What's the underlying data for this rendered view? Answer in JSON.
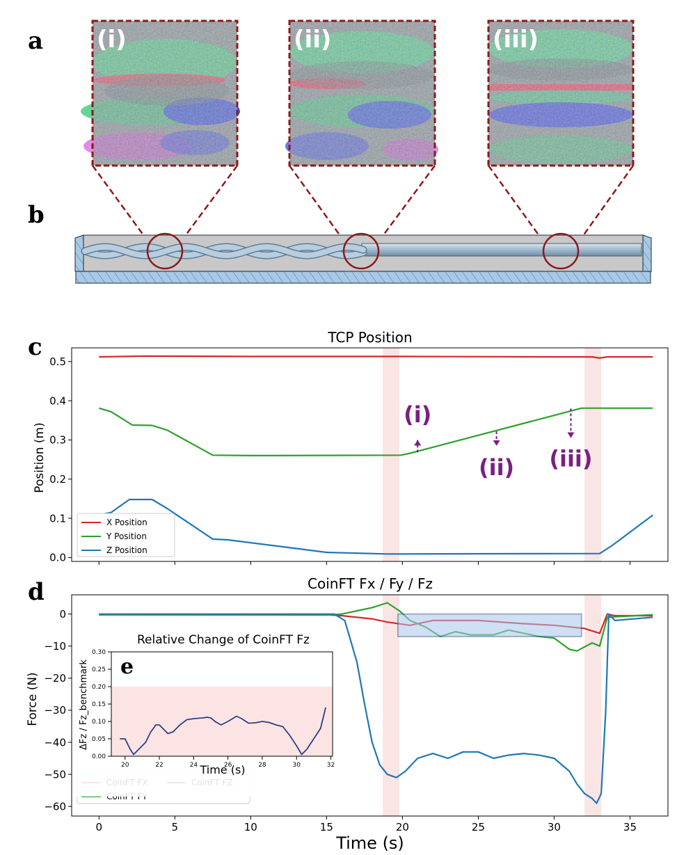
{
  "panel_letters": {
    "a": "a",
    "b": "b",
    "c": "c",
    "d": "d",
    "e": "e"
  },
  "images": {
    "labels": [
      "(i)",
      "(ii)",
      "(iii)"
    ],
    "description_colors": {
      "frame": "#8b1a1a",
      "red": "#ff2040",
      "green": "#2ee07a",
      "blue": "#2233ee",
      "gray": "#808c8c"
    }
  },
  "colors": {
    "x": "#d62728",
    "y": "#2ca02c",
    "z": "#1f77b4",
    "highlight": "#f9dede",
    "purple": "#7a1f82",
    "frame": "#8b1a1a"
  },
  "chart_data": [
    {
      "id": "tcp",
      "type": "line",
      "title": "TCP Position",
      "xlabel": "",
      "ylabel": "Position (m)",
      "xlim": [
        -1.8,
        37.5
      ],
      "ylim": [
        -0.01,
        0.535
      ],
      "xticks": [
        0,
        5,
        10,
        15,
        20,
        25,
        30,
        35
      ],
      "yticks": [
        0.0,
        0.1,
        0.2,
        0.3,
        0.4,
        0.5
      ],
      "ytick_labels": [
        "0.0",
        "0.1",
        "0.2",
        "0.3",
        "0.4",
        "0.5"
      ],
      "shaded_x": [
        [
          18.7,
          19.8
        ],
        [
          32.0,
          33.1
        ]
      ],
      "series": [
        {
          "name": "X Position",
          "color": "x",
          "points": [
            [
              0,
              0.512
            ],
            [
              3,
              0.514
            ],
            [
              10,
              0.513
            ],
            [
              20,
              0.513
            ],
            [
              30,
              0.512
            ],
            [
              32.5,
              0.512
            ],
            [
              33.0,
              0.509
            ],
            [
              33.5,
              0.512
            ],
            [
              36.5,
              0.512
            ]
          ]
        },
        {
          "name": "Y Position",
          "color": "y",
          "points": [
            [
              0,
              0.381
            ],
            [
              0.8,
              0.372
            ],
            [
              2.2,
              0.338
            ],
            [
              3.5,
              0.337
            ],
            [
              4.5,
              0.325
            ],
            [
              7.5,
              0.261
            ],
            [
              10,
              0.26
            ],
            [
              19.9,
              0.261
            ],
            [
              20.5,
              0.266
            ],
            [
              31.8,
              0.381
            ],
            [
              36.5,
              0.381
            ]
          ]
        },
        {
          "name": "Z Position",
          "color": "z",
          "points": [
            [
              0,
              0.109
            ],
            [
              0.8,
              0.115
            ],
            [
              2.0,
              0.148
            ],
            [
              3.5,
              0.148
            ],
            [
              4.5,
              0.125
            ],
            [
              7.5,
              0.047
            ],
            [
              8.5,
              0.045
            ],
            [
              12,
              0.028
            ],
            [
              15,
              0.013
            ],
            [
              19,
              0.009
            ],
            [
              33,
              0.01
            ],
            [
              33.8,
              0.03
            ],
            [
              36.5,
              0.108
            ]
          ]
        }
      ],
      "annotations": [
        {
          "text": "(i)",
          "x": 21.0,
          "y": 0.345,
          "arrow_from": [
            21.0,
            0.268
          ],
          "arrow_to": [
            21.0,
            0.3
          ]
        },
        {
          "text": "(ii)",
          "x": 26.2,
          "y": 0.21,
          "arrow_from": [
            26.2,
            0.322
          ],
          "arrow_to": [
            26.2,
            0.285
          ]
        },
        {
          "text": "(iii)",
          "x": 31.1,
          "y": 0.232,
          "arrow_from": [
            31.1,
            0.38
          ],
          "arrow_to": [
            31.1,
            0.305
          ]
        }
      ],
      "legend": "lower-left"
    },
    {
      "id": "force",
      "type": "line",
      "title": "CoinFT Fx / Fy / Fz",
      "xlabel": "Time (s)",
      "ylabel": "Force (N)",
      "xlim": [
        -1.8,
        37.5
      ],
      "ylim": [
        -63,
        6
      ],
      "xticks": [
        0,
        5,
        10,
        15,
        20,
        25,
        30,
        35
      ],
      "yticks": [
        0,
        -10,
        -20,
        -30,
        -40,
        -50,
        -60
      ],
      "ytick_labels": [
        "0",
        "−10",
        "−20",
        "−30",
        "−40",
        "−50",
        "−60"
      ],
      "shaded_x": [
        [
          18.7,
          19.8
        ],
        [
          32.0,
          33.1
        ]
      ],
      "highlight_box": {
        "x": [
          19.7,
          31.8
        ],
        "y": [
          -7,
          0
        ]
      },
      "series": [
        {
          "name": "CoinFT FX",
          "color": "x",
          "points": [
            [
              0,
              -0.2
            ],
            [
              15,
              -0.2
            ],
            [
              16,
              -0.5
            ],
            [
              18,
              -1.5
            ],
            [
              19,
              -2.5
            ],
            [
              20.5,
              -3.5
            ],
            [
              22,
              -2
            ],
            [
              25,
              -2
            ],
            [
              28,
              -3
            ],
            [
              30,
              -3.5
            ],
            [
              32,
              -4.5
            ],
            [
              33,
              -6
            ],
            [
              33.5,
              0
            ],
            [
              34,
              -0.5
            ],
            [
              36.5,
              -0.5
            ]
          ]
        },
        {
          "name": "CoinFT FY",
          "color": "y",
          "points": [
            [
              0,
              -0.2
            ],
            [
              15,
              -0.3
            ],
            [
              16,
              0
            ],
            [
              17,
              1
            ],
            [
              18,
              2
            ],
            [
              19,
              3.5
            ],
            [
              19.8,
              1
            ],
            [
              20.5,
              -2
            ],
            [
              21.5,
              -4
            ],
            [
              22.5,
              -7
            ],
            [
              23.5,
              -5.5
            ],
            [
              24.5,
              -6.5
            ],
            [
              26,
              -6.5
            ],
            [
              27,
              -5
            ],
            [
              28,
              -6
            ],
            [
              29,
              -7
            ],
            [
              30,
              -7.5
            ],
            [
              31,
              -11
            ],
            [
              31.5,
              -11.5
            ],
            [
              32.5,
              -9
            ],
            [
              33,
              -10
            ],
            [
              33.5,
              -1
            ],
            [
              36.5,
              -0.2
            ]
          ]
        },
        {
          "name": "CoinFT FZ",
          "color": "z",
          "points": [
            [
              0,
              0
            ],
            [
              15.5,
              0
            ],
            [
              16.2,
              -2
            ],
            [
              17,
              -15
            ],
            [
              17.5,
              -28
            ],
            [
              18,
              -40
            ],
            [
              18.5,
              -47
            ],
            [
              19,
              -50
            ],
            [
              19.6,
              -51
            ],
            [
              20.2,
              -49
            ],
            [
              21,
              -45
            ],
            [
              22,
              -43.5
            ],
            [
              23,
              -45
            ],
            [
              24,
              -43
            ],
            [
              25,
              -43
            ],
            [
              26,
              -45
            ],
            [
              27,
              -44
            ],
            [
              28,
              -43.5
            ],
            [
              29,
              -44
            ],
            [
              30,
              -45
            ],
            [
              31,
              -49
            ],
            [
              31.5,
              -53
            ],
            [
              32,
              -56
            ],
            [
              32.5,
              -57.5
            ],
            [
              32.8,
              -59
            ],
            [
              33.1,
              -56
            ],
            [
              33.4,
              -30
            ],
            [
              33.6,
              0
            ],
            [
              34,
              -2
            ],
            [
              36.5,
              -1
            ]
          ]
        }
      ],
      "legend": "lower-left",
      "legend_cols": [
        [
          "CoinFT FX",
          "CoinFT FY"
        ],
        [
          "CoinFT FZ"
        ]
      ]
    },
    {
      "id": "inset",
      "type": "line",
      "title": "Relative Change of CoinFT Fz",
      "xlabel": "Time (s)",
      "ylabel": "ΔFz / Fz_benchmark",
      "xlim": [
        19.2,
        32.1
      ],
      "ylim": [
        0.0,
        0.3
      ],
      "xticks": [
        20,
        22,
        24,
        26,
        28,
        30,
        32
      ],
      "yticks": [
        0.0,
        0.05,
        0.1,
        0.15,
        0.2,
        0.25,
        0.3
      ],
      "ytick_labels": [
        "0.00",
        "0.05",
        "0.10",
        "0.15",
        "0.20",
        "0.25",
        "0.30"
      ],
      "shaded_y": [
        0.0,
        0.2
      ],
      "series": [
        {
          "name": "Relative change",
          "color": "z",
          "points": [
            [
              19.7,
              0.05
            ],
            [
              20,
              0.05
            ],
            [
              20.3,
              0.02
            ],
            [
              20.5,
              0.005
            ],
            [
              20.8,
              0.02
            ],
            [
              21.2,
              0.04
            ],
            [
              21.5,
              0.07
            ],
            [
              21.8,
              0.09
            ],
            [
              22.0,
              0.09
            ],
            [
              22.5,
              0.065
            ],
            [
              22.8,
              0.07
            ],
            [
              23.2,
              0.09
            ],
            [
              23.6,
              0.105
            ],
            [
              24,
              0.108
            ],
            [
              24.5,
              0.11
            ],
            [
              24.8,
              0.112
            ],
            [
              25.0,
              0.11
            ],
            [
              25.3,
              0.098
            ],
            [
              25.6,
              0.09
            ],
            [
              26,
              0.1
            ],
            [
              26.5,
              0.115
            ],
            [
              26.8,
              0.108
            ],
            [
              27.2,
              0.095
            ],
            [
              27.6,
              0.096
            ],
            [
              28,
              0.1
            ],
            [
              28.4,
              0.097
            ],
            [
              28.8,
              0.09
            ],
            [
              29.2,
              0.085
            ],
            [
              29.6,
              0.06
            ],
            [
              30.0,
              0.03
            ],
            [
              30.3,
              0.005
            ],
            [
              30.6,
              0.02
            ],
            [
              31,
              0.05
            ],
            [
              31.4,
              0.08
            ],
            [
              31.7,
              0.14
            ]
          ]
        }
      ]
    }
  ]
}
